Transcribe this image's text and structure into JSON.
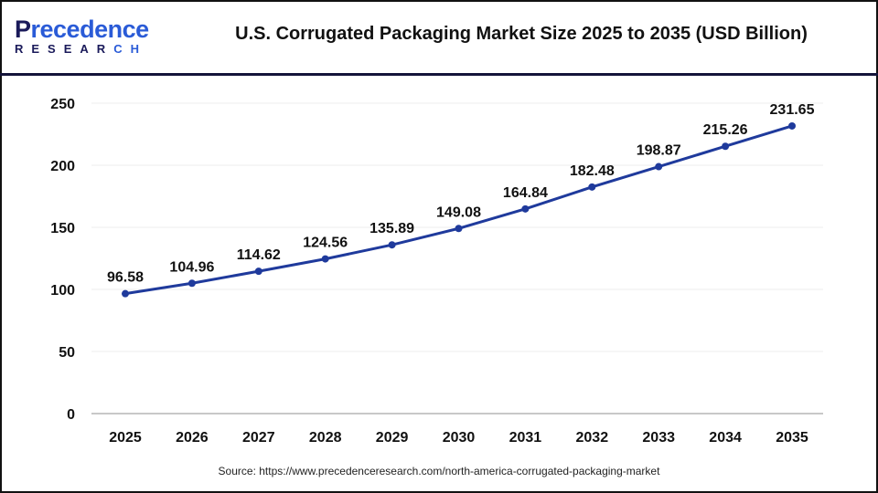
{
  "logo": {
    "line1": "Precedence",
    "line2": "RESEARCH"
  },
  "chart_data": {
    "type": "line",
    "title": "U.S. Corrugated Packaging Market Size 2025 to 2035 (USD Billion)",
    "categories": [
      "2025",
      "2026",
      "2027",
      "2028",
      "2029",
      "2030",
      "2031",
      "2032",
      "2033",
      "2034",
      "2035"
    ],
    "values": [
      96.58,
      104.96,
      114.62,
      124.56,
      135.89,
      149.08,
      164.84,
      182.48,
      198.87,
      215.26,
      231.65
    ],
    "data_labels": [
      "96.58",
      "104.96",
      "114.62",
      "124.56",
      "135.89",
      "149.08",
      "164.84",
      "182.48",
      "198.87",
      "215.26",
      "231.65"
    ],
    "yticks": [
      0,
      50,
      100,
      150,
      200,
      250
    ],
    "ylim": [
      0,
      250
    ],
    "grid": true,
    "line_color": "#1f3a9c"
  },
  "source": "Source: https://www.precedenceresearch.com/north-america-corrugated-packaging-market"
}
